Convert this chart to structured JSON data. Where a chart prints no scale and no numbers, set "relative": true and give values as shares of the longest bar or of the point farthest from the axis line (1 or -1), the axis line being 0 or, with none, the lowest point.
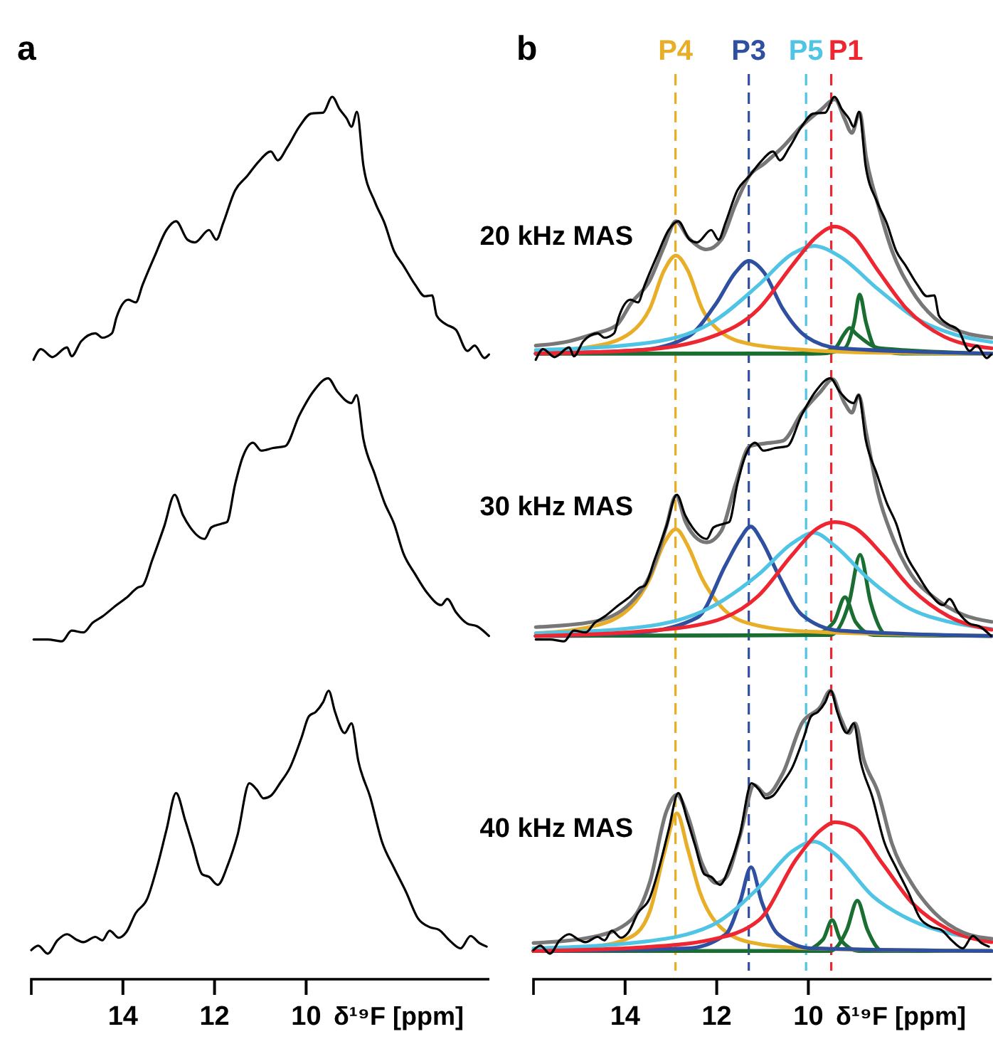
{
  "chart_data": [
    {
      "type": "line",
      "title": "a",
      "xlabel": "δ¹⁹F [ppm]",
      "relative": true,
      "xlim": [
        16,
        6
      ],
      "xticks": [
        14,
        12,
        10
      ],
      "line_style": "solid",
      "series": [
        {
          "color": "#000000",
          "x": [
            15.95,
            15.79,
            15.54,
            15.22,
            15.12,
            14.91,
            14.6,
            14.45,
            14.24,
            14.14,
            13.88,
            13.72,
            13.57,
            13.31,
            13.05,
            12.84,
            12.59,
            12.43,
            12.12,
            11.96,
            11.81,
            11.55,
            11.29,
            11.03,
            10.77,
            10.62,
            10.41,
            10.15,
            9.89,
            9.63,
            9.43,
            9.27,
            9.11,
            9.01,
            8.89,
            8.75,
            8.5,
            8.29,
            8.08,
            7.88,
            7.62,
            7.41,
            7.25,
            7.15,
            6.94,
            6.73,
            6.48,
            6.32,
            6.11,
            6.01
          ],
          "values": [
            0.702,
            0.714,
            0.705,
            0.716,
            0.706,
            0.723,
            0.732,
            0.727,
            0.732,
            0.75,
            0.77,
            0.767,
            0.787,
            0.819,
            0.849,
            0.859,
            0.838,
            0.835,
            0.849,
            0.838,
            0.857,
            0.894,
            0.91,
            0.927,
            0.938,
            0.928,
            0.943,
            0.966,
            0.981,
            0.982,
            1,
            0.986,
            0.975,
            0.966,
            0.983,
            0.922,
            0.881,
            0.857,
            0.825,
            0.809,
            0.787,
            0.774,
            0.775,
            0.752,
            0.742,
            0.736,
            0.712,
            0.718,
            0.704,
            0.708
          ]
        },
        {
          "color": "#000000",
          "x": [
            15.95,
            15.64,
            15.33,
            15.12,
            14.86,
            14.66,
            14.45,
            14.14,
            13.93,
            13.67,
            13.57,
            13.36,
            13.1,
            12.87,
            12.69,
            12.53,
            12.22,
            12.07,
            11.86,
            11.73,
            11.55,
            11.39,
            11.16,
            10.98,
            10.72,
            10.46,
            10.15,
            9.83,
            9.52,
            9.32,
            9.01,
            8.9,
            8.75,
            8.5,
            8.29,
            8.08,
            7.88,
            7.62,
            7.36,
            7.05,
            6.92,
            6.73,
            6.48,
            6.27,
            6.01
          ],
          "values": [
            0.385,
            0.385,
            0.383,
            0.395,
            0.393,
            0.404,
            0.411,
            0.424,
            0.432,
            0.444,
            0.446,
            0.475,
            0.513,
            0.549,
            0.526,
            0.512,
            0.499,
            0.512,
            0.516,
            0.518,
            0.561,
            0.591,
            0.608,
            0.599,
            0.602,
            0.604,
            0.639,
            0.667,
            0.681,
            0.666,
            0.653,
            0.662,
            0.612,
            0.572,
            0.54,
            0.516,
            0.483,
            0.459,
            0.438,
            0.424,
            0.431,
            0.416,
            0.403,
            0.4,
            0.389
          ]
        },
        {
          "color": "#000000",
          "x": [
            16,
            15.85,
            15.64,
            15.43,
            15.22,
            15.02,
            14.86,
            14.6,
            14.45,
            14.29,
            14.09,
            13.93,
            13.72,
            13.47,
            13.26,
            13.05,
            12.84,
            12.64,
            12.48,
            12.27,
            12.12,
            11.93,
            11.7,
            11.5,
            11.24,
            11.08,
            10.93,
            10.77,
            10.56,
            10.36,
            10.1,
            9.94,
            9.79,
            9.63,
            9.51,
            9.37,
            9.16,
            9.01,
            8.86,
            8.6,
            8.34,
            8.08,
            7.82,
            7.56,
            7.3,
            7.1,
            6.89,
            6.63,
            6.41,
            6.22,
            6.06
          ],
          "values": [
            0.033,
            0.038,
            0.029,
            0.044,
            0.051,
            0.045,
            0.042,
            0.048,
            0.044,
            0.055,
            0.047,
            0.053,
            0.075,
            0.091,
            0.126,
            0.169,
            0.211,
            0.18,
            0.153,
            0.119,
            0.116,
            0.107,
            0.131,
            0.163,
            0.222,
            0.215,
            0.205,
            0.208,
            0.223,
            0.239,
            0.274,
            0.298,
            0.303,
            0.314,
            0.327,
            0.303,
            0.279,
            0.29,
            0.247,
            0.206,
            0.155,
            0.126,
            0.099,
            0.069,
            0.059,
            0.056,
            0.045,
            0.035,
            0.049,
            0.041,
            0.037
          ]
        }
      ]
    },
    {
      "type": "line",
      "title": "b",
      "xlabel": "δ¹⁹F [ppm]",
      "relative": true,
      "xlim": [
        16,
        6
      ],
      "xticks": [
        14,
        12,
        10
      ],
      "line_style": "solid",
      "annotations": [
        "20 kHz MAS",
        "30 kHz MAS",
        "40 kHz MAS"
      ],
      "ref_lines": [
        {
          "axis": "x",
          "value": 12.9,
          "label": "P4",
          "color": "#e8ae28",
          "line_style": "dashed"
        },
        {
          "axis": "x",
          "value": 11.3,
          "label": "P3",
          "color": "#2f4fa0",
          "line_style": "dashed"
        },
        {
          "axis": "x",
          "value": 10.05,
          "label": "P5",
          "color": "#4fc4e4",
          "line_style": "dashed"
        },
        {
          "axis": "x",
          "value": 9.5,
          "label": "P1",
          "color": "#ee2631",
          "line_style": "dashed"
        }
      ],
      "series": [
        {
          "color": "#1a6e32",
          "x": [
            15.95,
            9.91,
            9.42,
            9.22,
            9.1,
            8.95,
            8.43,
            6.0
          ],
          "values": [
            0.709,
            0.709,
            0.715,
            0.731,
            0.738,
            0.731,
            0.715,
            0.709
          ]
        },
        {
          "color": "#1a6e32",
          "x": [
            15.95,
            9.73,
            9.21,
            9.0,
            8.88,
            8.74,
            8.53,
            7.96,
            6.0
          ],
          "values": [
            0.709,
            0.709,
            0.715,
            0.744,
            0.776,
            0.744,
            0.715,
            0.709,
            0.709
          ]
        },
        {
          "color": "#e8ae28",
          "x": [
            15.95,
            14.7,
            13.87,
            13.46,
            13.15,
            12.89,
            12.63,
            12.32,
            11.9,
            11.28,
            10.03,
            8.48,
            6.0
          ],
          "values": [
            0.711,
            0.717,
            0.733,
            0.76,
            0.803,
            0.82,
            0.803,
            0.76,
            0.733,
            0.72,
            0.713,
            0.71,
            0.709
          ]
        },
        {
          "color": "#2f4fa0",
          "x": [
            15.95,
            13.67,
            12.63,
            12.01,
            11.59,
            11.3,
            10.97,
            10.56,
            10.04,
            9.31,
            6.0
          ],
          "values": [
            0.709,
            0.713,
            0.728,
            0.766,
            0.801,
            0.814,
            0.801,
            0.76,
            0.728,
            0.715,
            0.709
          ]
        },
        {
          "color": "#4fc4e4",
          "x": [
            15.95,
            13.67,
            12.11,
            11.08,
            10.35,
            9.88,
            9.31,
            8.48,
            7.65,
            6.83,
            6.0
          ],
          "values": [
            0.713,
            0.72,
            0.744,
            0.787,
            0.822,
            0.831,
            0.819,
            0.782,
            0.749,
            0.731,
            0.722
          ]
        },
        {
          "color": "#ee2631",
          "x": [
            15.95,
            13.67,
            12.11,
            11.08,
            10.35,
            9.83,
            9.42,
            9.0,
            8.48,
            7.86,
            7.03,
            6.0
          ],
          "values": [
            0.709,
            0.713,
            0.728,
            0.76,
            0.809,
            0.841,
            0.853,
            0.841,
            0.803,
            0.76,
            0.728,
            0.715
          ]
        },
        {
          "color": "#777777",
          "x": [
            15.95,
            15.22,
            14.7,
            14.19,
            13.87,
            13.46,
            13.15,
            12.89,
            12.63,
            12.22,
            11.9,
            11.59,
            11.28,
            10.97,
            10.56,
            10.14,
            9.73,
            9.42,
            9.21,
            9.05,
            8.88,
            8.74,
            8.48,
            8.17,
            7.76,
            7.24,
            6.62,
            6.0
          ],
          "values": [
            0.718,
            0.723,
            0.731,
            0.741,
            0.766,
            0.792,
            0.83,
            0.859,
            0.841,
            0.827,
            0.838,
            0.878,
            0.911,
            0.924,
            0.943,
            0.967,
            0.985,
            0.997,
            0.975,
            0.959,
            0.982,
            0.932,
            0.878,
            0.825,
            0.782,
            0.749,
            0.733,
            0.727
          ]
        },
        {
          "color": "#000000",
          "x": [
            15.95,
            15.79,
            15.54,
            15.22,
            15.12,
            14.91,
            14.6,
            14.45,
            14.24,
            14.14,
            13.88,
            13.72,
            13.57,
            13.31,
            13.05,
            12.84,
            12.59,
            12.43,
            12.12,
            11.96,
            11.81,
            11.55,
            11.29,
            11.03,
            10.77,
            10.62,
            10.41,
            10.15,
            9.89,
            9.63,
            9.43,
            9.27,
            9.11,
            9.01,
            8.89,
            8.75,
            8.5,
            8.29,
            8.08,
            7.88,
            7.62,
            7.41,
            7.25,
            7.15,
            6.94,
            6.73,
            6.48,
            6.32,
            6.11,
            6.01
          ],
          "values": [
            0.702,
            0.714,
            0.705,
            0.716,
            0.706,
            0.723,
            0.732,
            0.727,
            0.732,
            0.75,
            0.77,
            0.767,
            0.787,
            0.819,
            0.849,
            0.859,
            0.838,
            0.835,
            0.849,
            0.838,
            0.857,
            0.894,
            0.91,
            0.927,
            0.938,
            0.928,
            0.943,
            0.966,
            0.981,
            0.982,
            1,
            0.986,
            0.975,
            0.966,
            0.983,
            0.922,
            0.881,
            0.857,
            0.825,
            0.809,
            0.787,
            0.774,
            0.775,
            0.752,
            0.742,
            0.736,
            0.712,
            0.718,
            0.704,
            0.708
          ]
        },
        {
          "color": "#1a6e32",
          "x": [
            15.95,
            9.91,
            9.44,
            9.2,
            8.97,
            8.57,
            6.0
          ],
          "values": [
            0.389,
            0.39,
            0.405,
            0.433,
            0.405,
            0.39,
            0.389
          ]
        },
        {
          "color": "#1a6e32",
          "x": [
            15.95,
            9.52,
            9.11,
            8.87,
            8.64,
            8.28,
            6.0
          ],
          "values": [
            0.389,
            0.39,
            0.427,
            0.481,
            0.427,
            0.39,
            0.389
          ]
        },
        {
          "color": "#e8ae28",
          "x": [
            15.95,
            14.7,
            13.87,
            13.46,
            13.15,
            12.89,
            12.63,
            12.32,
            11.9,
            11.28,
            10.03,
            6.0
          ],
          "values": [
            0.392,
            0.4,
            0.422,
            0.454,
            0.494,
            0.51,
            0.491,
            0.454,
            0.422,
            0.403,
            0.394,
            0.389
          ]
        },
        {
          "color": "#2f4fa0",
          "x": [
            15.95,
            13.67,
            12.42,
            11.8,
            11.49,
            11.26,
            11.02,
            10.66,
            10.14,
            9.31,
            6.0
          ],
          "values": [
            0.389,
            0.393,
            0.41,
            0.47,
            0.499,
            0.513,
            0.497,
            0.459,
            0.413,
            0.395,
            0.389
          ]
        },
        {
          "color": "#4fc4e4",
          "x": [
            15.95,
            13.67,
            12.11,
            11.08,
            10.35,
            9.88,
            9.42,
            8.69,
            7.86,
            6.93,
            6.0
          ],
          "values": [
            0.392,
            0.399,
            0.422,
            0.459,
            0.494,
            0.506,
            0.491,
            0.454,
            0.422,
            0.405,
            0.397
          ]
        },
        {
          "color": "#ee2631",
          "x": [
            15.95,
            13.67,
            12.11,
            11.08,
            10.35,
            9.83,
            9.42,
            9.0,
            8.38,
            7.76,
            6.93,
            6.0
          ],
          "values": [
            0.389,
            0.394,
            0.405,
            0.435,
            0.481,
            0.51,
            0.518,
            0.512,
            0.481,
            0.443,
            0.411,
            0.396
          ]
        },
        {
          "color": "#777777",
          "x": [
            15.95,
            14.7,
            13.87,
            13.36,
            13.1,
            12.89,
            12.68,
            12.42,
            12.22,
            11.9,
            11.59,
            11.28,
            10.97,
            10.56,
            10.14,
            9.73,
            9.47,
            9.21,
            9.05,
            8.9,
            8.74,
            8.48,
            8.17,
            7.76,
            7.24,
            6.62,
            6.0
          ],
          "values": [
            0.399,
            0.405,
            0.427,
            0.47,
            0.513,
            0.548,
            0.518,
            0.499,
            0.495,
            0.508,
            0.561,
            0.604,
            0.607,
            0.61,
            0.642,
            0.666,
            0.68,
            0.653,
            0.642,
            0.662,
            0.62,
            0.551,
            0.502,
            0.459,
            0.432,
            0.413,
            0.405
          ]
        },
        {
          "color": "#000000",
          "x": [
            15.95,
            15.64,
            15.33,
            15.12,
            14.86,
            14.66,
            14.45,
            14.14,
            13.93,
            13.67,
            13.57,
            13.36,
            13.1,
            12.87,
            12.69,
            12.53,
            12.22,
            12.07,
            11.86,
            11.73,
            11.55,
            11.39,
            11.16,
            10.98,
            10.72,
            10.46,
            10.15,
            9.83,
            9.52,
            9.32,
            9.01,
            8.9,
            8.75,
            8.5,
            8.29,
            8.08,
            7.88,
            7.62,
            7.36,
            7.05,
            6.92,
            6.73,
            6.48,
            6.27,
            6.01
          ],
          "values": [
            0.385,
            0.385,
            0.383,
            0.395,
            0.393,
            0.404,
            0.411,
            0.424,
            0.432,
            0.444,
            0.446,
            0.475,
            0.513,
            0.549,
            0.526,
            0.512,
            0.499,
            0.512,
            0.516,
            0.518,
            0.561,
            0.591,
            0.608,
            0.599,
            0.602,
            0.604,
            0.639,
            0.667,
            0.681,
            0.666,
            0.653,
            0.662,
            0.612,
            0.572,
            0.54,
            0.516,
            0.483,
            0.459,
            0.438,
            0.424,
            0.431,
            0.416,
            0.403,
            0.4,
            0.389
          ]
        },
        {
          "color": "#1a6e32",
          "x": [
            16,
            10.14,
            9.68,
            9.48,
            9.3,
            8.9,
            6.0
          ],
          "values": [
            0.032,
            0.032,
            0.045,
            0.067,
            0.045,
            0.032,
            0.032
          ]
        },
        {
          "color": "#1a6e32",
          "x": [
            16,
            9.52,
            9.16,
            8.93,
            8.71,
            8.38,
            6.0
          ],
          "values": [
            0.032,
            0.032,
            0.056,
            0.089,
            0.056,
            0.032,
            0.032
          ]
        },
        {
          "color": "#e8ae28",
          "x": [
            16,
            14.7,
            13.87,
            13.46,
            13.15,
            12.87,
            12.63,
            12.37,
            12.01,
            11.28,
            10.03,
            6.0
          ],
          "values": [
            0.033,
            0.037,
            0.048,
            0.077,
            0.142,
            0.188,
            0.147,
            0.099,
            0.064,
            0.042,
            0.035,
            0.032
          ]
        },
        {
          "color": "#2f4fa0",
          "x": [
            16,
            12.63,
            11.8,
            11.49,
            11.25,
            11.02,
            10.66,
            9.93,
            6.0
          ],
          "values": [
            0.032,
            0.035,
            0.051,
            0.088,
            0.127,
            0.088,
            0.051,
            0.035,
            0.032
          ]
        },
        {
          "color": "#4fc4e4",
          "x": [
            16,
            13.67,
            12.11,
            11.08,
            10.35,
            9.88,
            9.42,
            8.59,
            7.76,
            6.83,
            6.0
          ],
          "values": [
            0.035,
            0.042,
            0.061,
            0.104,
            0.145,
            0.156,
            0.142,
            0.094,
            0.067,
            0.051,
            0.045
          ]
        },
        {
          "color": "#ee2631",
          "x": [
            16,
            13.67,
            12.11,
            11.08,
            10.25,
            9.73,
            9.42,
            9.0,
            8.38,
            7.76,
            6.93,
            6.0
          ],
          "values": [
            0.032,
            0.036,
            0.045,
            0.067,
            0.137,
            0.169,
            0.178,
            0.172,
            0.131,
            0.088,
            0.056,
            0.042
          ]
        },
        {
          "color": "#777777",
          "x": [
            16,
            14.7,
            13.87,
            13.46,
            13.1,
            12.87,
            12.63,
            12.32,
            12.01,
            11.8,
            11.49,
            11.18,
            10.92,
            10.56,
            10.14,
            9.73,
            9.52,
            9.31,
            9.11,
            8.98,
            8.79,
            8.48,
            8.17,
            7.76,
            7.24,
            6.62,
            6.0
          ],
          "values": [
            0.041,
            0.048,
            0.067,
            0.11,
            0.19,
            0.209,
            0.185,
            0.131,
            0.109,
            0.115,
            0.163,
            0.22,
            0.209,
            0.233,
            0.29,
            0.309,
            0.327,
            0.298,
            0.279,
            0.29,
            0.249,
            0.212,
            0.153,
            0.11,
            0.075,
            0.053,
            0.046
          ]
        },
        {
          "color": "#000000",
          "x": [
            16,
            15.85,
            15.64,
            15.43,
            15.22,
            15.02,
            14.86,
            14.6,
            14.45,
            14.29,
            14.09,
            13.93,
            13.72,
            13.47,
            13.26,
            13.05,
            12.84,
            12.64,
            12.48,
            12.27,
            12.12,
            11.93,
            11.7,
            11.5,
            11.24,
            11.08,
            10.93,
            10.77,
            10.56,
            10.36,
            10.1,
            9.94,
            9.79,
            9.63,
            9.51,
            9.37,
            9.16,
            9.01,
            8.86,
            8.6,
            8.34,
            8.08,
            7.82,
            7.56,
            7.3,
            7.1,
            6.89,
            6.63,
            6.41,
            6.22,
            6.06
          ],
          "values": [
            0.033,
            0.038,
            0.029,
            0.044,
            0.051,
            0.045,
            0.042,
            0.048,
            0.044,
            0.055,
            0.047,
            0.053,
            0.075,
            0.091,
            0.126,
            0.169,
            0.211,
            0.18,
            0.153,
            0.119,
            0.116,
            0.107,
            0.131,
            0.163,
            0.222,
            0.215,
            0.205,
            0.208,
            0.223,
            0.239,
            0.274,
            0.298,
            0.303,
            0.314,
            0.327,
            0.303,
            0.279,
            0.29,
            0.247,
            0.206,
            0.155,
            0.126,
            0.099,
            0.069,
            0.059,
            0.056,
            0.045,
            0.035,
            0.049,
            0.041,
            0.037
          ]
        }
      ]
    }
  ]
}
